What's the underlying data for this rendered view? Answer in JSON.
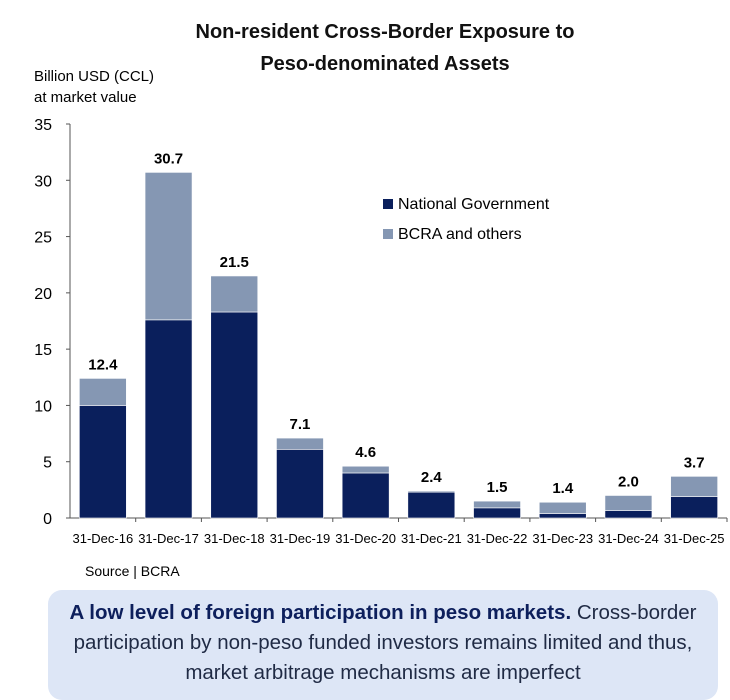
{
  "chart_data": {
    "type": "bar",
    "stacked": true,
    "title": "Non-resident Cross-Border Exposure to Peso-denominated Assets",
    "title_lines": [
      "Non-resident Cross-Border Exposure to",
      "Peso-denominated Assets"
    ],
    "ylabel_lines": [
      "Billion USD (CCL)",
      "at market value"
    ],
    "xlabel": "",
    "ylim": [
      0,
      35
    ],
    "yticks": [
      0,
      5,
      10,
      15,
      20,
      25,
      30,
      35
    ],
    "categories": [
      "31-Dec-16",
      "31-Dec-17",
      "31-Dec-18",
      "31-Dec-19",
      "31-Dec-20",
      "31-Dec-21",
      "31-Dec-22",
      "31-Dec-23",
      "31-Dec-24",
      "31-Dec-25"
    ],
    "series": [
      {
        "name": "National Government",
        "color": "#0a1f5c",
        "values": [
          10.0,
          17.6,
          18.3,
          6.1,
          4.0,
          2.3,
          0.9,
          0.4,
          0.65,
          1.9
        ]
      },
      {
        "name": "BCRA and others",
        "color": "#8597b3",
        "values": [
          2.4,
          13.1,
          3.2,
          1.0,
          0.6,
          0.1,
          0.6,
          1.0,
          1.35,
          1.8
        ]
      }
    ],
    "totals": [
      "12.4",
      "30.7",
      "21.5",
      "7.1",
      "4.6",
      "2.4",
      "1.5",
      "1.4",
      "2.0",
      "3.7"
    ],
    "legend_position": "top-right",
    "grid": false
  },
  "source": "Source | BCRA",
  "callout": {
    "bold": "A low level of foreign participation in peso markets.",
    "text": " Cross-border participation by non-peso funded investors remains limited and thus, market arbitrage mechanisms are imperfect"
  }
}
